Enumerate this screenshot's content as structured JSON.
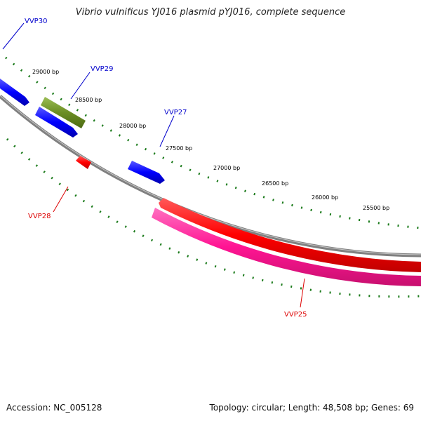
{
  "title": "Vibrio vulnificus YJ016 plasmid pYJ016, complete sequence",
  "footer": {
    "accession": "Accession: NC_005128",
    "summary": "Topology: circular; Length: 48,508 bp; Genes: 69"
  },
  "ruler": {
    "tick_labels": [
      "29000 bp",
      "28500 bp",
      "28000 bp",
      "27500 bp",
      "27000 bp",
      "26500 bp",
      "26000 bp",
      "25500 bp"
    ]
  },
  "genes": [
    {
      "name": "VVP30",
      "strand": "forward",
      "color": "#0000ff"
    },
    {
      "name": "VVP29",
      "strand": "forward",
      "color": "#6b8e23"
    },
    {
      "name": "VVP27",
      "strand": "forward",
      "color": "#0000ff"
    },
    {
      "name": "VVP28",
      "strand": "reverse",
      "color": "#ff0000"
    },
    {
      "name": "VVP25",
      "strand": "reverse",
      "color": "#ff1493"
    }
  ],
  "colors": {
    "backbone": "#808080",
    "ticks": "#1a7a1a",
    "forward_label": "#0000cc",
    "reverse_label": "#dd0000"
  }
}
